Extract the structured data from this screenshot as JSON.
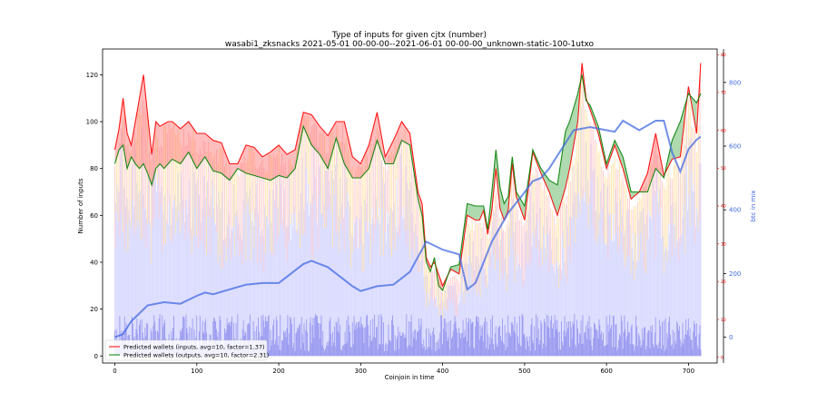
{
  "chart_data": {
    "type": "line",
    "title": "Type of inputs for given cjtx (number)",
    "subtitle": "wasabi1_zksnacks 2021-05-01 00-00-00--2021-06-01 00-00-00_unknown-static-100-1utxo",
    "xlabel": "Coinjoin in time",
    "ylabel": "Number of inputs",
    "y2label": "btc in mix",
    "xlim": [
      -15,
      735
    ],
    "ylim": [
      -3,
      131
    ],
    "y2lim": [
      -81,
      905
    ],
    "y3lim": [
      -1.5,
      81.5
    ],
    "xticks": [
      0,
      100,
      200,
      300,
      400,
      500,
      600,
      700
    ],
    "yticks": [
      0,
      20,
      40,
      60,
      80,
      100,
      120
    ],
    "y2ticks": [
      0,
      200,
      400,
      600,
      800
    ],
    "y3ticks": [
      0,
      10,
      20,
      30,
      40,
      50,
      60,
      70,
      80
    ],
    "legend_position": "lower-left",
    "series": [
      {
        "name": "Predicted wallets (inputs, avg=10, factor=1.37)",
        "color": "#ff0000",
        "x": [
          0,
          5,
          10,
          15,
          20,
          25,
          30,
          35,
          40,
          45,
          50,
          55,
          60,
          65,
          70,
          80,
          90,
          100,
          110,
          120,
          130,
          140,
          150,
          160,
          170,
          180,
          190,
          200,
          210,
          220,
          230,
          240,
          250,
          260,
          270,
          280,
          290,
          300,
          310,
          320,
          330,
          340,
          350,
          360,
          370,
          375,
          380,
          385,
          390,
          395,
          400,
          410,
          420,
          430,
          440,
          445,
          450,
          455,
          460,
          465,
          470,
          475,
          480,
          485,
          490,
          500,
          510,
          520,
          530,
          540,
          550,
          555,
          560,
          565,
          570,
          575,
          580,
          590,
          600,
          610,
          620,
          630,
          640,
          650,
          660,
          670,
          680,
          690,
          700,
          710,
          715
        ],
        "values": [
          88,
          97,
          110,
          95,
          90,
          100,
          110,
          120,
          103,
          86,
          100,
          98,
          99,
          100,
          100,
          97,
          100,
          95,
          95,
          92,
          91,
          82,
          82,
          90,
          89,
          85,
          87,
          90,
          86,
          88,
          104,
          103,
          98,
          94,
          100,
          100,
          85,
          82,
          90,
          104,
          85,
          92,
          100,
          95,
          70,
          65,
          42,
          38,
          40,
          35,
          30,
          37,
          35,
          60,
          58,
          58,
          62,
          52,
          62,
          80,
          63,
          58,
          62,
          82,
          68,
          58,
          87,
          78,
          70,
          60,
          72,
          80,
          90,
          100,
          125,
          110,
          105,
          95,
          80,
          90,
          80,
          67,
          70,
          78,
          95,
          77,
          84,
          85,
          115,
          95,
          125
        ]
      },
      {
        "name": "Predicted wallets (outputs, avg=10, factor=2.31)",
        "color": "#008000",
        "x": [
          0,
          5,
          10,
          15,
          20,
          25,
          30,
          35,
          40,
          45,
          50,
          55,
          60,
          65,
          70,
          80,
          90,
          100,
          110,
          120,
          130,
          140,
          150,
          160,
          170,
          180,
          190,
          200,
          210,
          220,
          230,
          240,
          250,
          260,
          270,
          280,
          290,
          300,
          310,
          320,
          330,
          340,
          350,
          360,
          370,
          375,
          380,
          385,
          390,
          395,
          400,
          410,
          420,
          430,
          440,
          445,
          450,
          455,
          460,
          465,
          470,
          475,
          480,
          485,
          490,
          500,
          510,
          520,
          530,
          540,
          550,
          555,
          560,
          565,
          570,
          575,
          580,
          590,
          600,
          610,
          620,
          630,
          640,
          650,
          660,
          670,
          680,
          690,
          700,
          710,
          715
        ],
        "values": [
          82,
          88,
          90,
          80,
          85,
          82,
          80,
          82,
          78,
          73,
          80,
          82,
          80,
          82,
          84,
          82,
          87,
          80,
          85,
          79,
          78,
          75,
          80,
          78,
          77,
          76,
          75,
          77,
          76,
          80,
          98,
          90,
          86,
          80,
          93,
          82,
          76,
          76,
          80,
          92,
          82,
          82,
          92,
          90,
          67,
          60,
          40,
          36,
          42,
          30,
          28,
          38,
          39,
          65,
          64,
          64,
          64,
          54,
          70,
          88,
          72,
          65,
          68,
          85,
          70,
          64,
          88,
          80,
          75,
          73,
          96,
          100,
          106,
          112,
          120,
          109,
          107,
          98,
          82,
          92,
          85,
          70,
          70,
          70,
          80,
          76,
          92,
          100,
          112,
          108,
          112
        ]
      },
      {
        "name": "btc in mix",
        "axis": "right",
        "color": "#4169e1",
        "x": [
          0,
          10,
          20,
          40,
          60,
          80,
          100,
          110,
          120,
          140,
          160,
          180,
          200,
          210,
          220,
          230,
          240,
          260,
          280,
          290,
          300,
          320,
          340,
          360,
          380,
          400,
          420,
          430,
          440,
          460,
          480,
          500,
          510,
          520,
          530,
          540,
          560,
          580,
          600,
          610,
          620,
          640,
          660,
          670,
          680,
          690,
          700,
          710,
          715
        ],
        "values": [
          0,
          10,
          50,
          100,
          110,
          105,
          130,
          140,
          135,
          150,
          165,
          170,
          170,
          190,
          210,
          230,
          240,
          220,
          180,
          160,
          145,
          160,
          165,
          205,
          300,
          275,
          260,
          150,
          170,
          300,
          390,
          455,
          490,
          500,
          530,
          570,
          650,
          660,
          650,
          645,
          680,
          650,
          680,
          680,
          580,
          520,
          590,
          620,
          630
        ]
      }
    ]
  },
  "legend": [
    {
      "label": "Predicted wallets (inputs, avg=10, factor=1.37)",
      "color": "#ff0000"
    },
    {
      "label": "Predicted wallets (outputs, avg=10, factor=2.31)",
      "color": "#008000"
    }
  ]
}
